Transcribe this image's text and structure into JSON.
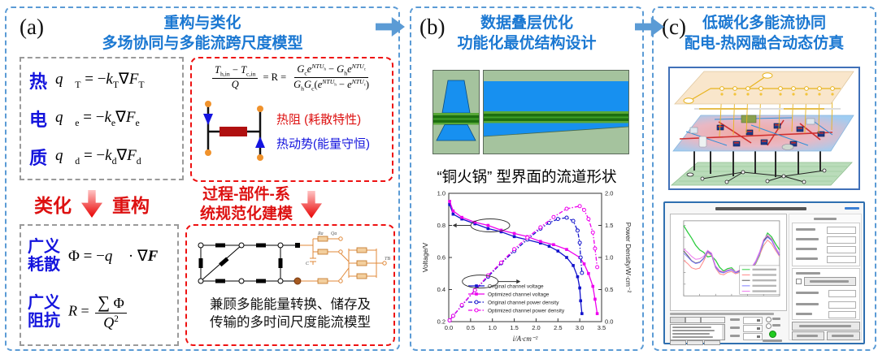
{
  "panels": {
    "a": {
      "label": "(a)",
      "title1": "重构与类化",
      "title2": "多场协同与多能流跨尺度模型",
      "fields": [
        {
          "label": "热",
          "sub": "T"
        },
        {
          "label": "电",
          "sub": "e"
        },
        {
          "label": "质",
          "sub": "d"
        }
      ],
      "thermal_resistance": "热阻 (耗散特性)",
      "thermal_potential": "热动势(能量守恒)",
      "classify": "类化",
      "reconstruct": "重构",
      "proc1": "过程-部件-系",
      "proc2": "统规范化建模",
      "general": [
        {
          "l1": "广义",
          "l2": "耗散"
        },
        {
          "l1": "广义",
          "l2": "阻抗"
        }
      ],
      "cap1": "兼顾多能能量转换、储存及",
      "cap2": "传输的多时间尺度能流模型"
    },
    "b": {
      "label": "(b)",
      "title1": "数据叠层优化",
      "title2": "功能化最优结构设计",
      "caption": "“铜火锅” 型界面的流道形状"
    },
    "c": {
      "label": "(c)",
      "title1": "低碳化多能流协同",
      "title2": "配电-热网融合动态仿真"
    }
  },
  "sym": {
    "q": "q⃗",
    "k": "k",
    "F": "F",
    "nabla": "∇",
    "eq": "=",
    "minus": "−",
    "T": "T",
    "hin": "h,in",
    "cin": "c,in",
    "Q": "Q",
    "eqReq": "= R =",
    "G": "G",
    "c": "c",
    "h": "h",
    "e": "e",
    "NTU": "NTU",
    "lp": "(",
    "rp": ")",
    "Phi": "Φ",
    "dot": "·",
    "R": "R",
    "Sigma": "∑",
    "two": "2"
  },
  "net": {
    "Ra": "Ra",
    "Qa": "Qa",
    "C": "C",
    "TB": "TB"
  },
  "colors": {
    "panel_border": "#5b9bd5",
    "title_blue": "#1b78d2",
    "label_blue": "#1414dd",
    "accent_red": "#dd1111",
    "series_blue": "#1212cc",
    "series_magenta": "#ee00ee",
    "channel_blue": "#1790f0",
    "channel_green": "#1d6f10",
    "channel_bg": "#a5c39e"
  },
  "chart_data": [
    {
      "type": "line",
      "context": "fuel-cell polarization and power density curves",
      "xlabel": "i/A·cm⁻²",
      "ylabel_left": "Voltage/V",
      "ylabel_right": "Power Density/W·cm⁻²",
      "xlim": [
        0,
        3.5
      ],
      "ylim_left": [
        0.2,
        1.0
      ],
      "ylim_right": [
        0.0,
        2.0
      ],
      "xticks": [
        "0.0",
        "0.5",
        "1.0",
        "1.5",
        "2.0",
        "2.5",
        "3.0",
        "3.5"
      ],
      "yticks_left": [
        "0.2",
        "0.4",
        "0.6",
        "0.8",
        "1.0"
      ],
      "yticks_right": [
        "0.0",
        "0.5",
        "1.0",
        "1.5",
        "2.0"
      ],
      "legend_position": "lower-left-inside",
      "grid": false,
      "series": [
        {
          "name": "Original channel voltage",
          "color": "#1212cc",
          "axis": "left",
          "style": "solid",
          "marker": "square",
          "x": [
            0.02,
            0.1,
            0.3,
            0.6,
            0.9,
            1.2,
            1.5,
            1.8,
            2.1,
            2.3,
            2.5,
            2.7,
            2.85,
            2.95,
            3.0,
            3.02,
            3.05
          ],
          "y": [
            0.93,
            0.87,
            0.84,
            0.81,
            0.78,
            0.76,
            0.73,
            0.71,
            0.69,
            0.67,
            0.64,
            0.6,
            0.55,
            0.48,
            0.41,
            0.33,
            0.25
          ]
        },
        {
          "name": "Optimized channel voltage",
          "color": "#ee00ee",
          "axis": "left",
          "style": "solid",
          "marker": "square",
          "x": [
            0.02,
            0.1,
            0.3,
            0.6,
            0.9,
            1.2,
            1.5,
            1.8,
            2.1,
            2.4,
            2.7,
            3.0,
            3.1,
            3.2,
            3.3,
            3.35,
            3.4
          ],
          "y": [
            0.95,
            0.89,
            0.85,
            0.82,
            0.8,
            0.77,
            0.75,
            0.73,
            0.7,
            0.68,
            0.65,
            0.6,
            0.56,
            0.5,
            0.42,
            0.34,
            0.25
          ]
        },
        {
          "name": "Original channel power density",
          "color": "#1212cc",
          "axis": "right",
          "style": "dashdot",
          "marker": "circle-open",
          "x": [
            0.02,
            0.1,
            0.3,
            0.6,
            0.9,
            1.2,
            1.5,
            1.8,
            2.1,
            2.3,
            2.5,
            2.7,
            2.85,
            2.95,
            3.0,
            3.02,
            3.05
          ],
          "y": [
            0.02,
            0.09,
            0.25,
            0.49,
            0.7,
            0.91,
            1.1,
            1.28,
            1.45,
            1.54,
            1.6,
            1.62,
            1.57,
            1.42,
            1.23,
            1.0,
            0.76
          ]
        },
        {
          "name": "Optimized channel power density",
          "color": "#ee00ee",
          "axis": "right",
          "style": "dashdot",
          "marker": "circle-open",
          "x": [
            0.02,
            0.1,
            0.3,
            0.6,
            0.9,
            1.2,
            1.5,
            1.8,
            2.1,
            2.4,
            2.7,
            3.0,
            3.1,
            3.2,
            3.3,
            3.35,
            3.4
          ],
          "y": [
            0.02,
            0.09,
            0.26,
            0.49,
            0.72,
            0.92,
            1.13,
            1.31,
            1.47,
            1.63,
            1.76,
            1.8,
            1.74,
            1.6,
            1.39,
            1.14,
            0.85
          ]
        }
      ],
      "annotations": [
        {
          "type": "ellipse-arrow",
          "at_x": 0.95,
          "at_voltage": 0.8,
          "direction": "left"
        },
        {
          "type": "ellipse-arrow",
          "at_x": 0.72,
          "at_voltage": 0.45,
          "direction": "right"
        }
      ]
    },
    {
      "type": "line",
      "context": "daily load curves inside simulation-software screenshot (labels illegible)",
      "x_range_hours": [
        0,
        24
      ],
      "y_range": [
        0,
        320
      ],
      "grid": false,
      "series": [
        {
          "color": "#2ecc40",
          "values": [
            300,
            272,
            246,
            216,
            196,
            186,
            166,
            170,
            152,
            122,
            106,
            116,
            120,
            102,
            106,
            112,
            106,
            116,
            136,
            172,
            230,
            268,
            252,
            222,
            196
          ]
        },
        {
          "color": "#ff8888",
          "values": [
            152,
            138,
            120,
            114,
            118,
            148,
            184,
            172,
            118,
            94,
            90,
            100,
            104,
            94,
            100,
            108,
            104,
            114,
            138,
            174,
            214,
            238,
            222,
            194,
            168
          ]
        },
        {
          "color": "#555555",
          "values": [
            192,
            172,
            150,
            140,
            144,
            160,
            190,
            178,
            124,
            104,
            100,
            108,
            112,
            100,
            108,
            114,
            110,
            120,
            144,
            184,
            234,
            254,
            238,
            204,
            174
          ]
        },
        {
          "color": "#7b7bff",
          "values": [
            182,
            166,
            148,
            138,
            142,
            158,
            188,
            176,
            122,
            102,
            98,
            106,
            110,
            98,
            104,
            112,
            108,
            118,
            142,
            180,
            230,
            250,
            236,
            202,
            172
          ]
        },
        {
          "color": "#ee77ee",
          "values": [
            200,
            186,
            168,
            156,
            158,
            168,
            194,
            182,
            128,
            108,
            102,
            110,
            114,
            102,
            110,
            118,
            112,
            122,
            148,
            188,
            240,
            260,
            244,
            208,
            178
          ]
        }
      ],
      "legend_entries": 5
    }
  ]
}
